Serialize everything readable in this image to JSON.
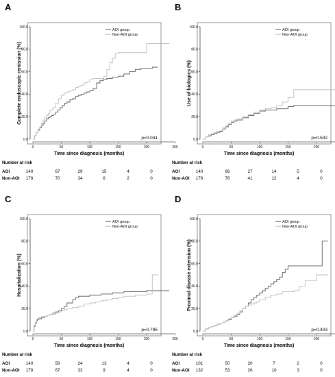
{
  "risk_header": "Number at  risk",
  "chart_data": [
    {
      "panel": "A",
      "type": "line",
      "step": true,
      "xlabel": "Time since diagnosis (months)",
      "ylabel": "Complete endoscopic remission (%)",
      "xticks": [
        0,
        50,
        100,
        150,
        200,
        250
      ],
      "yticks": [
        "0.0",
        "20.0",
        "40.0",
        "60.0",
        "80.0",
        "100.0"
      ],
      "xlim": [
        0,
        250
      ],
      "ylim": [
        0,
        100
      ],
      "grid": false,
      "legend_position": "top-right",
      "p_value": "p=0.041",
      "series": [
        {
          "name": "AOI group",
          "color": "#555555",
          "x": [
            0,
            3,
            6,
            9,
            12,
            15,
            18,
            21,
            24,
            27,
            30,
            33,
            36,
            40,
            44,
            48,
            52,
            56,
            60,
            65,
            70,
            75,
            80,
            85,
            90,
            95,
            100,
            106,
            112,
            118,
            124,
            130,
            140,
            150,
            160,
            170,
            180,
            190,
            200,
            210,
            220
          ],
          "y": [
            0,
            3,
            6,
            8,
            10,
            12,
            14,
            16,
            18,
            19,
            20,
            21,
            22,
            24,
            26,
            28,
            30,
            32,
            33,
            35,
            36,
            38,
            39,
            40,
            41,
            42,
            43,
            45,
            50,
            52,
            53,
            54,
            55,
            56,
            58,
            60,
            62,
            63,
            63,
            64,
            64
          ]
        },
        {
          "name": "Non-AOI group",
          "color": "#bbbbbb",
          "x": [
            0,
            3,
            6,
            9,
            12,
            15,
            18,
            21,
            24,
            27,
            30,
            35,
            40,
            45,
            50,
            55,
            60,
            65,
            70,
            75,
            80,
            85,
            90,
            95,
            100,
            105,
            110,
            118,
            125,
            130,
            135,
            140,
            145,
            150,
            160,
            180,
            200,
            220,
            240
          ],
          "y": [
            0,
            3,
            6,
            9,
            11,
            14,
            17,
            19,
            21,
            23,
            26,
            28,
            32,
            36,
            39,
            41,
            42,
            43,
            44,
            46,
            47,
            48,
            50,
            51,
            53,
            54,
            54,
            54,
            56,
            62,
            68,
            72,
            76,
            77,
            77,
            77,
            85,
            85,
            85
          ]
        }
      ],
      "risk_table": [
        {
          "label": "AOI",
          "values": [
            "140",
            "67",
            "29",
            "15",
            "4",
            "0"
          ]
        },
        {
          "label": "Non-AOI",
          "values": [
            "178",
            "70",
            "34",
            "6",
            "2",
            "0"
          ]
        }
      ]
    },
    {
      "panel": "B",
      "type": "line",
      "step": true,
      "xlabel": "Time since diagnosis (months)",
      "ylabel": "Use of biologics (%)",
      "xticks": [
        0,
        50,
        100,
        150,
        200,
        250
      ],
      "yticks": [
        "0.0",
        "20.0",
        "40.0",
        "60.0",
        "80.0",
        "100.0"
      ],
      "xlim": [
        0,
        250
      ],
      "ylim": [
        0,
        100
      ],
      "grid": false,
      "legend_position": "top-right",
      "p_value": "p=0.542",
      "series": [
        {
          "name": "AOI group",
          "color": "#555555",
          "x": [
            0,
            5,
            10,
            15,
            20,
            25,
            30,
            35,
            40,
            45,
            50,
            55,
            60,
            70,
            80,
            90,
            100,
            110,
            130,
            150,
            160,
            240
          ],
          "y": [
            0,
            2,
            3,
            4,
            5,
            6,
            7,
            9,
            11,
            13,
            15,
            16,
            17,
            19,
            21,
            23,
            25,
            26,
            27,
            29,
            30,
            30
          ]
        },
        {
          "name": "Non-AOI group",
          "color": "#bbbbbb",
          "x": [
            0,
            5,
            10,
            15,
            20,
            25,
            30,
            35,
            40,
            45,
            50,
            55,
            60,
            70,
            80,
            90,
            100,
            110,
            120,
            130,
            140,
            150,
            160,
            240
          ],
          "y": [
            0,
            2,
            4,
            5,
            6,
            7,
            8,
            10,
            12,
            14,
            16,
            17,
            18,
            20,
            22,
            24,
            26,
            27,
            28,
            30,
            33,
            37,
            44,
            44
          ]
        }
      ],
      "risk_table": [
        {
          "label": "AOI",
          "values": [
            "140",
            "66",
            "27",
            "14",
            "5",
            "0"
          ]
        },
        {
          "label": "Non-AOI",
          "values": [
            "178",
            "76",
            "41",
            "12",
            "4",
            "0"
          ]
        }
      ]
    },
    {
      "panel": "C",
      "type": "line",
      "step": true,
      "xlabel": "Time since diagnosis (months)",
      "ylabel": "Hospitalization (%)",
      "xticks": [
        0,
        50,
        100,
        150,
        200,
        250
      ],
      "yticks": [
        "0.0",
        "20.0",
        "40.0",
        "60.0",
        "80.0",
        "100.0"
      ],
      "xlim": [
        0,
        250
      ],
      "ylim": [
        0,
        100
      ],
      "grid": false,
      "legend_position": "top-right",
      "p_value": "p=0.795",
      "series": [
        {
          "name": "AOI group",
          "color": "#555555",
          "x": [
            0,
            2,
            4,
            6,
            8,
            10,
            15,
            20,
            25,
            30,
            35,
            40,
            45,
            50,
            55,
            60,
            70,
            75,
            80,
            90,
            100,
            110,
            120,
            140,
            160,
            180,
            200,
            240
          ],
          "y": [
            0,
            4,
            7,
            9,
            10,
            11,
            12,
            13,
            14,
            15,
            16,
            17,
            18,
            20,
            22,
            25,
            28,
            30,
            31,
            31,
            32,
            32,
            33,
            34,
            35,
            35,
            36,
            36
          ]
        },
        {
          "name": "Non-AOI group",
          "color": "#bbbbbb",
          "x": [
            0,
            2,
            4,
            6,
            8,
            10,
            15,
            20,
            25,
            30,
            35,
            40,
            45,
            50,
            55,
            60,
            70,
            80,
            90,
            100,
            110,
            120,
            130,
            140,
            150,
            160,
            180,
            200,
            210,
            220
          ],
          "y": [
            0,
            5,
            8,
            10,
            11,
            12,
            13,
            13,
            14,
            15,
            15,
            16,
            17,
            18,
            19,
            20,
            21,
            22,
            24,
            25,
            26,
            27,
            28,
            29,
            30,
            31,
            32,
            33,
            50,
            50
          ]
        }
      ],
      "risk_table": [
        {
          "label": "AOI",
          "values": [
            "140",
            "58",
            "24",
            "13",
            "4",
            "0"
          ]
        },
        {
          "label": "Non-AOI",
          "values": [
            "178",
            "67",
            "33",
            "9",
            "4",
            "0"
          ]
        }
      ]
    },
    {
      "panel": "D",
      "type": "line",
      "step": true,
      "xlabel": "Time since diagnosis (months)",
      "ylabel": "Proximal disease extension (%)",
      "xticks": [
        0,
        50,
        100,
        150,
        200,
        250
      ],
      "yticks": [
        "0.0",
        "20.0",
        "40.0",
        "60.0",
        "80.0",
        "100.0"
      ],
      "xlim": [
        0,
        250
      ],
      "ylim": [
        0,
        100
      ],
      "grid": false,
      "legend_position": "top-right",
      "p_value": "p=0.403",
      "series": [
        {
          "name": "AOI group",
          "color": "#555555",
          "x": [
            0,
            5,
            10,
            15,
            20,
            25,
            30,
            35,
            40,
            45,
            50,
            55,
            60,
            65,
            70,
            75,
            80,
            85,
            90,
            95,
            100,
            105,
            110,
            115,
            120,
            125,
            130,
            135,
            140,
            145,
            150,
            160,
            170,
            180,
            190,
            200,
            210,
            220
          ],
          "y": [
            0,
            2,
            3,
            4,
            5,
            6,
            7,
            8,
            9,
            10,
            12,
            13,
            15,
            17,
            20,
            22,
            25,
            28,
            30,
            32,
            34,
            36,
            38,
            40,
            42,
            44,
            46,
            48,
            52,
            55,
            58,
            58,
            58,
            58,
            58,
            58,
            80,
            80
          ]
        },
        {
          "name": "Non-AOI group",
          "color": "#bbbbbb",
          "x": [
            0,
            5,
            10,
            15,
            20,
            25,
            30,
            35,
            40,
            45,
            50,
            55,
            60,
            65,
            70,
            75,
            80,
            85,
            90,
            95,
            100,
            110,
            120,
            130,
            140,
            150,
            160,
            170,
            180,
            190,
            200,
            210,
            220
          ],
          "y": [
            0,
            2,
            3,
            4,
            5,
            6,
            7,
            8,
            9,
            11,
            12,
            14,
            16,
            18,
            20,
            22,
            23,
            24,
            25,
            26,
            28,
            30,
            32,
            33,
            35,
            35,
            36,
            40,
            45,
            45,
            50,
            50,
            50
          ]
        }
      ],
      "risk_table": [
        {
          "label": "AOI",
          "values": [
            "101",
            "50",
            "20",
            "7",
            "2",
            "0"
          ]
        },
        {
          "label": "Non-AOI",
          "values": [
            "132",
            "53",
            "26",
            "10",
            "3",
            "0"
          ]
        }
      ]
    }
  ]
}
